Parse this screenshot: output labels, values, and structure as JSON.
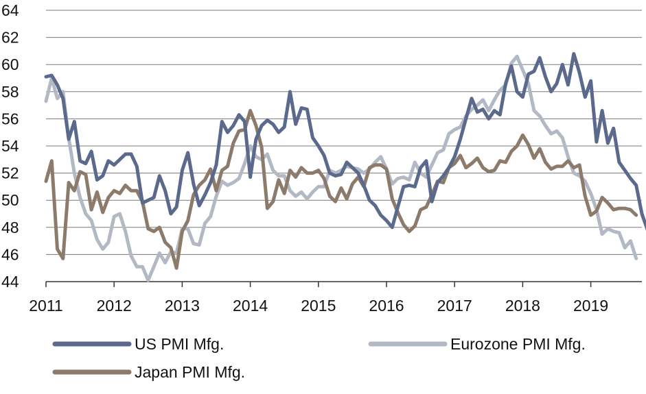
{
  "chart_data": {
    "type": "line",
    "title": "",
    "xlabel": "",
    "ylabel": "",
    "ylim": [
      44,
      64
    ],
    "yticks": [
      44,
      46,
      48,
      50,
      52,
      54,
      56,
      58,
      60,
      62,
      64
    ],
    "xlim": [
      2011,
      2019.75
    ],
    "xticks": [
      "2011",
      "2012",
      "2013",
      "2014",
      "2015",
      "2016",
      "2017",
      "2018",
      "2019"
    ],
    "grid": "horizontal",
    "legend_position": "bottom",
    "x_start": 2011.0,
    "x_step_months": 1,
    "series": [
      {
        "name": "US PMI Mfg.",
        "color": "#5b6a8c",
        "values": [
          59.1,
          59.2,
          58.5,
          57.5,
          54.5,
          55.8,
          52.9,
          52.7,
          53.6,
          51.5,
          51.8,
          52.9,
          52.6,
          53.0,
          53.4,
          53.4,
          52.5,
          49.8,
          50.0,
          50.2,
          51.8,
          50.7,
          49.0,
          49.5,
          52.2,
          53.5,
          51.2,
          49.6,
          50.4,
          51.3,
          52.6,
          55.8,
          55.0,
          55.5,
          56.3,
          55.8,
          51.7,
          54.5,
          55.5,
          55.9,
          55.6,
          55.0,
          55.4,
          58.0,
          55.6,
          56.8,
          56.7,
          54.6,
          54.0,
          53.3,
          52.0,
          51.8,
          51.9,
          52.8,
          52.4,
          52.0,
          51.1,
          50.0,
          49.6,
          48.9,
          48.5,
          48.0,
          49.5,
          51.0,
          51.1,
          51.0,
          52.4,
          52.9,
          49.9,
          51.3,
          51.8,
          52.4,
          53.2,
          54.5,
          56.0,
          57.5,
          56.5,
          56.7,
          56.0,
          56.6,
          56.3,
          58.6,
          59.9,
          58.0,
          57.6,
          59.3,
          59.5,
          60.5,
          59.1,
          58.0,
          58.6,
          60.0,
          58.5,
          60.8,
          59.4,
          57.6,
          58.8,
          54.3,
          56.6,
          54.2,
          55.3,
          52.8,
          52.2,
          51.6,
          51.1,
          49.0,
          47.8
        ]
      },
      {
        "name": "Eurozone PMI Mfg.",
        "color": "#b3b9c4",
        "values": [
          57.3,
          59.0,
          57.5,
          58.0,
          54.6,
          52.0,
          50.2,
          49.0,
          48.5,
          47.1,
          46.4,
          46.9,
          48.8,
          49.0,
          47.7,
          45.9,
          45.1,
          45.1,
          44.1,
          45.1,
          46.1,
          45.4,
          46.2,
          46.1,
          47.9,
          47.9,
          46.8,
          46.7,
          48.3,
          48.8,
          50.3,
          51.4,
          51.1,
          51.3,
          51.6,
          52.7,
          54.0,
          53.2,
          53.0,
          53.4,
          52.2,
          51.8,
          51.8,
          50.7,
          50.3,
          50.6,
          50.1,
          50.6,
          51.0,
          51.0,
          52.2,
          52.0,
          52.2,
          52.5,
          52.4,
          52.3,
          52.0,
          52.3,
          52.8,
          53.2,
          52.3,
          51.2,
          51.6,
          51.7,
          51.5,
          52.8,
          52.0,
          51.7,
          52.6,
          53.5,
          53.7,
          54.9,
          55.2,
          55.4,
          56.2,
          56.7,
          57.0,
          57.4,
          56.6,
          57.4,
          58.1,
          58.5,
          60.1,
          60.6,
          59.6,
          58.6,
          56.6,
          56.2,
          55.5,
          54.9,
          55.1,
          54.6,
          53.2,
          52.0,
          51.8,
          51.4,
          50.5,
          49.3,
          47.5,
          47.9,
          47.7,
          47.6,
          46.5,
          47.0,
          45.7
        ]
      },
      {
        "name": "Japan PMI Mfg.",
        "color": "#8c7b6b",
        "values": [
          51.4,
          52.9,
          46.4,
          45.7,
          51.3,
          50.7,
          52.1,
          51.9,
          49.3,
          50.6,
          49.1,
          50.2,
          50.7,
          50.5,
          51.1,
          50.7,
          50.7,
          49.9,
          47.9,
          47.7,
          48.0,
          46.9,
          46.5,
          45.0,
          47.7,
          48.5,
          50.4,
          51.1,
          51.5,
          52.3,
          50.7,
          52.2,
          52.5,
          54.2,
          55.1,
          55.2,
          56.6,
          55.5,
          53.9,
          49.4,
          49.9,
          51.5,
          50.5,
          52.2,
          51.7,
          52.4,
          52.0,
          52.0,
          52.2,
          51.6,
          50.3,
          49.9,
          50.9,
          50.1,
          51.2,
          51.7,
          51.0,
          52.4,
          52.6,
          52.6,
          52.3,
          50.1,
          49.1,
          48.2,
          47.7,
          48.1,
          49.3,
          49.5,
          50.4,
          51.4,
          51.3,
          52.4,
          52.7,
          53.3,
          52.4,
          52.7,
          53.1,
          52.4,
          52.1,
          52.2,
          52.9,
          52.8,
          53.6,
          54.0,
          54.8,
          54.1,
          53.1,
          53.8,
          52.8,
          52.3,
          52.5,
          52.5,
          52.9,
          52.4,
          52.6,
          50.3,
          48.9,
          49.2,
          50.2,
          49.8,
          49.3,
          49.4,
          49.4,
          49.3,
          48.9
        ]
      }
    ]
  }
}
